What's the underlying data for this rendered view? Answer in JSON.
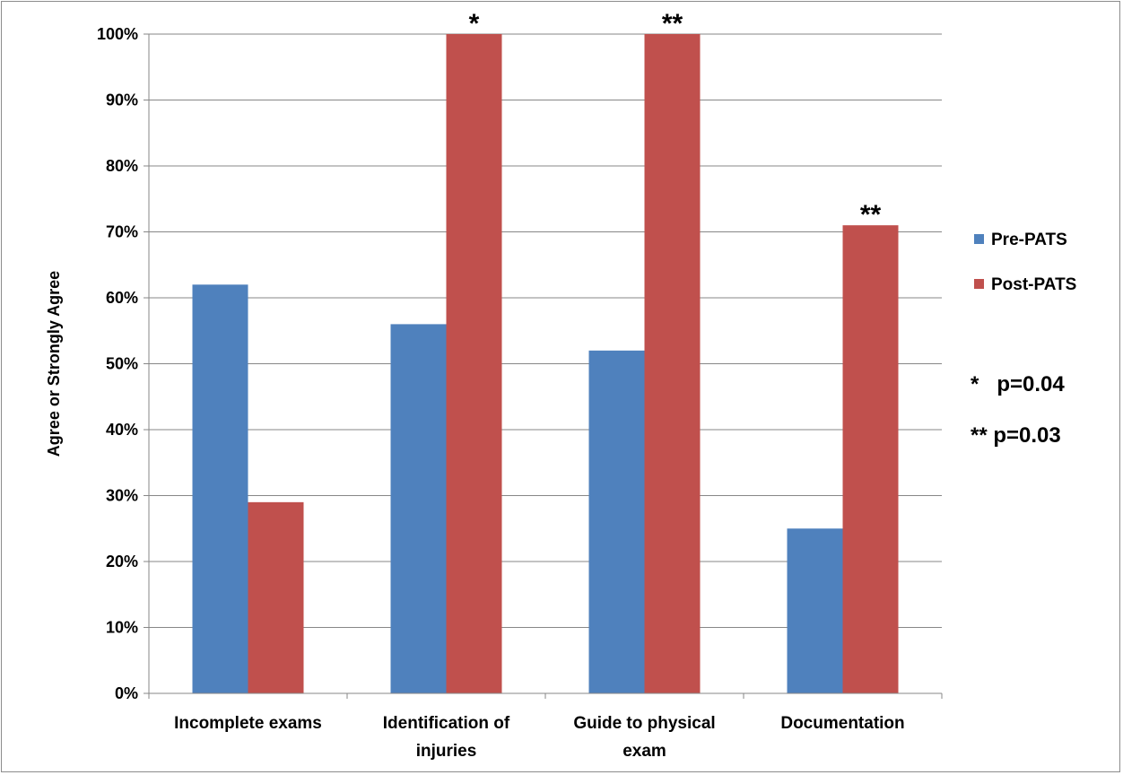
{
  "chart_data": {
    "type": "bar",
    "categories": [
      [
        "Incomplete exams"
      ],
      [
        "Identification of",
        "injuries"
      ],
      [
        "Guide to physical",
        "exam"
      ],
      [
        "Documentation"
      ]
    ],
    "series": [
      {
        "name": "Pre-PATS",
        "color": "#4f81bd",
        "values": [
          62,
          56,
          52,
          25
        ]
      },
      {
        "name": "Post-PATS",
        "color": "#c0504d",
        "values": [
          29,
          100,
          100,
          71
        ]
      }
    ],
    "significance_marks": [
      "",
      "*",
      "**",
      "**"
    ],
    "notes": [
      "*   p=0.04",
      "** p=0.03"
    ],
    "ylabel": "Agree or Strongly Agree",
    "ylim": [
      0,
      100
    ],
    "yticks": [
      "0%",
      "10%",
      "20%",
      "30%",
      "40%",
      "50%",
      "60%",
      "70%",
      "80%",
      "90%",
      "100%"
    ],
    "grid": true,
    "legend_position": "right"
  }
}
